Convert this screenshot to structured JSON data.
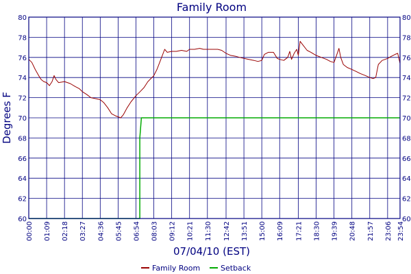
{
  "chart_data": {
    "type": "line",
    "title": "Family Room",
    "xlabel": "07/04/10 (EST)",
    "ylabel": "Degrees F",
    "ylim": [
      60,
      80
    ],
    "y_ticks": [
      60,
      62,
      64,
      66,
      68,
      70,
      72,
      74,
      76,
      78,
      80
    ],
    "x_ticks": [
      "00:00",
      "01:09",
      "02:18",
      "03:27",
      "04:36",
      "05:45",
      "06:54",
      "08:03",
      "09:12",
      "10:21",
      "11:30",
      "12:42",
      "13:51",
      "15:00",
      "16:09",
      "17:21",
      "18:30",
      "19:39",
      "20:48",
      "21:57",
      "23:06",
      "23:54"
    ],
    "grid": true,
    "legend_position": "bottom",
    "series": [
      {
        "name": "Family Room",
        "color": "#990000",
        "points": [
          [
            "00:00",
            75.8
          ],
          [
            "00:12",
            75.5
          ],
          [
            "00:25",
            74.8
          ],
          [
            "00:38",
            74.2
          ],
          [
            "00:48",
            73.8
          ],
          [
            "00:58",
            73.6
          ],
          [
            "01:09",
            73.5
          ],
          [
            "01:20",
            73.2
          ],
          [
            "01:30",
            73.6
          ],
          [
            "01:38",
            74.2
          ],
          [
            "01:45",
            73.8
          ],
          [
            "01:55",
            73.5
          ],
          [
            "02:18",
            73.6
          ],
          [
            "02:40",
            73.4
          ],
          [
            "03:00",
            73.1
          ],
          [
            "03:15",
            72.9
          ],
          [
            "03:27",
            72.6
          ],
          [
            "03:45",
            72.3
          ],
          [
            "04:00",
            72.0
          ],
          [
            "04:20",
            71.9
          ],
          [
            "04:36",
            71.8
          ],
          [
            "04:50",
            71.5
          ],
          [
            "05:05",
            71.0
          ],
          [
            "05:20",
            70.4
          ],
          [
            "05:35",
            70.2
          ],
          [
            "05:45",
            70.1
          ],
          [
            "05:55",
            70.0
          ],
          [
            "06:05",
            70.3
          ],
          [
            "06:20",
            71.0
          ],
          [
            "06:35",
            71.6
          ],
          [
            "06:54",
            72.2
          ],
          [
            "07:10",
            72.6
          ],
          [
            "07:25",
            73.0
          ],
          [
            "07:40",
            73.6
          ],
          [
            "08:03",
            74.2
          ],
          [
            "08:15",
            74.8
          ],
          [
            "08:30",
            75.8
          ],
          [
            "08:45",
            76.8
          ],
          [
            "08:55",
            76.5
          ],
          [
            "09:12",
            76.6
          ],
          [
            "09:30",
            76.6
          ],
          [
            "09:50",
            76.7
          ],
          [
            "10:10",
            76.6
          ],
          [
            "10:21",
            76.8
          ],
          [
            "10:40",
            76.8
          ],
          [
            "11:00",
            76.9
          ],
          [
            "11:15",
            76.8
          ],
          [
            "11:30",
            76.8
          ],
          [
            "11:50",
            76.8
          ],
          [
            "12:10",
            76.8
          ],
          [
            "12:25",
            76.7
          ],
          [
            "12:42",
            76.4
          ],
          [
            "13:00",
            76.2
          ],
          [
            "13:20",
            76.1
          ],
          [
            "13:35",
            76.0
          ],
          [
            "13:51",
            75.9
          ],
          [
            "14:10",
            75.8
          ],
          [
            "14:30",
            75.7
          ],
          [
            "14:45",
            75.6
          ],
          [
            "15:00",
            75.7
          ],
          [
            "15:10",
            76.3
          ],
          [
            "15:25",
            76.5
          ],
          [
            "15:45",
            76.5
          ],
          [
            "16:00",
            75.9
          ],
          [
            "16:09",
            75.8
          ],
          [
            "16:25",
            75.7
          ],
          [
            "16:40",
            76.0
          ],
          [
            "16:48",
            76.6
          ],
          [
            "16:55",
            75.8
          ],
          [
            "17:05",
            76.4
          ],
          [
            "17:15",
            76.8
          ],
          [
            "17:21",
            76.2
          ],
          [
            "17:28",
            77.6
          ],
          [
            "17:40",
            77.2
          ],
          [
            "17:55",
            76.7
          ],
          [
            "18:10",
            76.5
          ],
          [
            "18:30",
            76.2
          ],
          [
            "18:50",
            76.0
          ],
          [
            "19:10",
            75.8
          ],
          [
            "19:25",
            75.6
          ],
          [
            "19:39",
            75.5
          ],
          [
            "19:50",
            76.3
          ],
          [
            "19:58",
            76.9
          ],
          [
            "20:05",
            76.0
          ],
          [
            "20:15",
            75.3
          ],
          [
            "20:30",
            75.0
          ],
          [
            "20:48",
            74.8
          ],
          [
            "21:05",
            74.6
          ],
          [
            "21:20",
            74.4
          ],
          [
            "21:40",
            74.2
          ],
          [
            "21:57",
            74.0
          ],
          [
            "22:10",
            73.9
          ],
          [
            "22:20",
            74.0
          ],
          [
            "22:30",
            75.3
          ],
          [
            "22:45",
            75.7
          ],
          [
            "23:06",
            75.9
          ],
          [
            "23:20",
            76.1
          ],
          [
            "23:35",
            76.3
          ],
          [
            "23:45",
            76.4
          ],
          [
            "23:54",
            75.4
          ]
        ]
      },
      {
        "name": "Setback",
        "color": "#00aa00",
        "points": [
          [
            "00:00",
            60.0
          ],
          [
            "07:09",
            60.0
          ],
          [
            "07:09",
            68.0
          ],
          [
            "07:15",
            70.0
          ],
          [
            "23:54",
            70.0
          ]
        ]
      }
    ]
  }
}
